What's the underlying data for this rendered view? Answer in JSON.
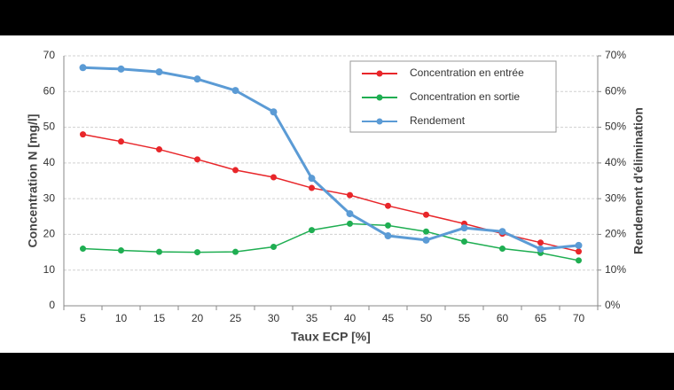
{
  "chart_data": {
    "type": "line",
    "x_label": "Taux ECP [%]",
    "y_label": "Concentration N [mg/l]",
    "y2_label": "Rendement d'élimination",
    "categories": [
      "5",
      "10",
      "15",
      "20",
      "25",
      "30",
      "35",
      "40",
      "45",
      "50",
      "55",
      "60",
      "65",
      "70"
    ],
    "series": [
      {
        "name": "Concentration en entrée",
        "color": "#e8262a",
        "values": [
          48,
          46,
          43.8,
          41,
          38,
          36,
          33,
          31,
          28,
          25.5,
          23,
          20.2,
          17.7,
          15.2
        ]
      },
      {
        "name": "Concentration en sortie",
        "color": "#1fae52",
        "values": [
          16,
          15.5,
          15.1,
          15,
          15.1,
          16.5,
          21.2,
          23,
          22.5,
          20.8,
          18,
          16,
          14.8,
          12.7
        ]
      },
      {
        "name": "Rendement",
        "color": "#5b9bd5",
        "axis": "y2",
        "values": [
          66.7,
          66.3,
          65.5,
          63.5,
          60.3,
          54.3,
          35.7,
          25.8,
          19.6,
          18.4,
          21.8,
          20.8,
          15.9,
          16.9
        ]
      }
    ],
    "ylim": [
      0,
      70
    ],
    "yticks": [
      0,
      10,
      20,
      30,
      40,
      50,
      60,
      70
    ],
    "y2lim": [
      0,
      70
    ],
    "y2ticks": [
      {
        "value": 0,
        "label": "0%"
      },
      {
        "value": 10,
        "label": "10%"
      },
      {
        "value": 20,
        "label": "20%"
      },
      {
        "value": 30,
        "label": "30%"
      },
      {
        "value": 40,
        "label": "40%"
      },
      {
        "value": 50,
        "label": "50%"
      },
      {
        "value": 60,
        "label": "60%"
      },
      {
        "value": 70,
        "label": "70%"
      }
    ],
    "grid": true,
    "legend": "top-right"
  }
}
